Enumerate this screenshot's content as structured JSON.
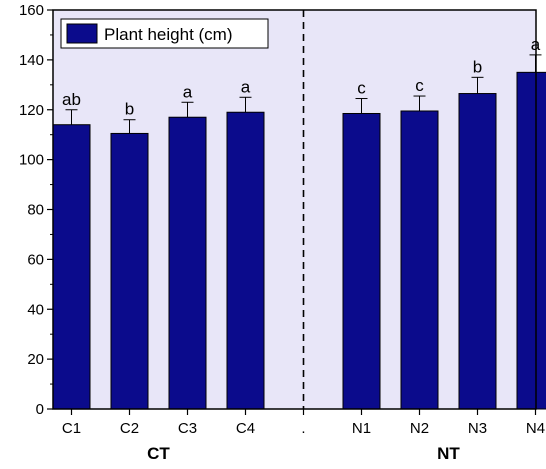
{
  "chart_data": {
    "type": "bar",
    "series": [
      {
        "name": "Plant height (cm)",
        "color": "#0b0b8c"
      }
    ],
    "legend": {
      "label": "Plant height (cm)",
      "placement": "top-left"
    },
    "ylim": [
      0,
      160
    ],
    "y_ticks": [
      "0",
      "20",
      "40",
      "60",
      "80",
      "100",
      "120",
      "140",
      "160"
    ],
    "groups": [
      {
        "name": "CT",
        "bars": [
          {
            "category": "C1",
            "value": 114,
            "error": 6,
            "letter": "ab"
          },
          {
            "category": "C2",
            "value": 110.5,
            "error": 5.5,
            "letter": "b"
          },
          {
            "category": "C3",
            "value": 117,
            "error": 6,
            "letter": "a"
          },
          {
            "category": "C4",
            "value": 119,
            "error": 6,
            "letter": "a"
          }
        ]
      },
      {
        "name": "NT",
        "bars": [
          {
            "category": "N1",
            "value": 118.5,
            "error": 6,
            "letter": "c"
          },
          {
            "category": "N2",
            "value": 119.5,
            "error": 6,
            "letter": "c"
          },
          {
            "category": "N3",
            "value": 126.5,
            "error": 6.5,
            "letter": "b"
          },
          {
            "category": "N4",
            "value": 135,
            "error": 7,
            "letter": "a"
          }
        ]
      }
    ],
    "separator_tick_label": ".",
    "background_color": "#e8e6f8",
    "grid": false
  }
}
